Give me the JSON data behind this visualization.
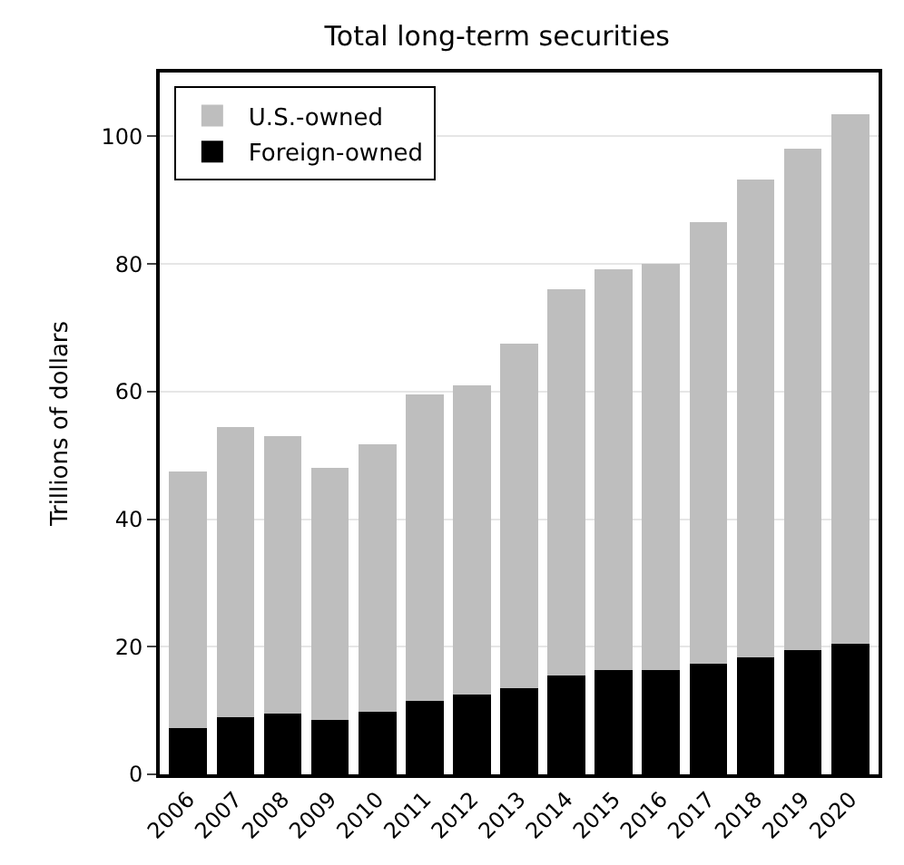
{
  "chart_data": {
    "type": "bar",
    "title": "Total long-term securities",
    "ylabel": "Trillions of dollars",
    "categories": [
      "2006",
      "2007",
      "2008",
      "2009",
      "2010",
      "2011",
      "2012",
      "2013",
      "2014",
      "2015",
      "2016",
      "2017",
      "2018",
      "2019",
      "2020"
    ],
    "stacked": true,
    "series": [
      {
        "name": "Foreign-owned",
        "color": "#000000",
        "values": [
          7.2,
          9,
          9.5,
          8.5,
          9.8,
          11.5,
          12.5,
          13.5,
          15.5,
          16.3,
          16.3,
          17.3,
          18.3,
          19.5,
          20.5
        ]
      },
      {
        "name": "U.S.-owned",
        "color": "#bebebe",
        "values": [
          40.3,
          45.5,
          43.5,
          39.5,
          41.9,
          48,
          48.5,
          54,
          60.5,
          62.9,
          63.7,
          69.2,
          74.9,
          78.5,
          83
        ]
      }
    ],
    "ylim": [
      0,
      110
    ],
    "yticks": [
      0,
      20,
      40,
      60,
      80,
      100
    ],
    "grid": "y",
    "legend": "top left"
  }
}
